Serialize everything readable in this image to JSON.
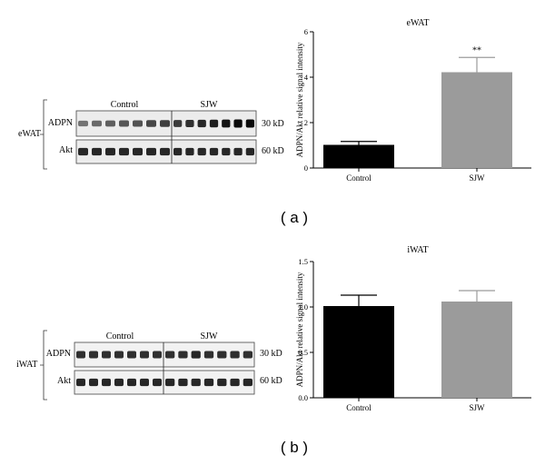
{
  "panels": [
    {
      "label": "( a )",
      "tissue": "eWAT",
      "blot": {
        "group_labels": [
          "Control",
          "SJW"
        ],
        "rows": [
          {
            "name": "ADPN",
            "size": "30 kD",
            "intensities_control": [
              0.45,
              0.5,
              0.55,
              0.6,
              0.62,
              0.68,
              0.72
            ],
            "intensities_sjw": [
              0.75,
              0.8,
              0.85,
              0.9,
              0.95,
              1.0,
              1.0
            ]
          },
          {
            "name": "Akt",
            "size": "60 kD",
            "intensities_control": [
              0.85,
              0.85,
              0.85,
              0.85,
              0.85,
              0.85,
              0.85
            ],
            "intensities_sjw": [
              0.85,
              0.85,
              0.85,
              0.85,
              0.85,
              0.85,
              0.85
            ]
          }
        ]
      }
    },
    {
      "label": "( b )",
      "tissue": "iWAT",
      "blot": {
        "group_labels": [
          "Control",
          "SJW"
        ],
        "rows": [
          {
            "name": "ADPN",
            "size": "30 kD",
            "intensities_control": [
              0.8,
              0.8,
              0.8,
              0.8,
              0.8,
              0.8,
              0.8
            ],
            "intensities_sjw": [
              0.8,
              0.8,
              0.85,
              0.8,
              0.8,
              0.8,
              0.8
            ]
          },
          {
            "name": "Akt",
            "size": "60 kD",
            "intensities_control": [
              0.85,
              0.85,
              0.85,
              0.85,
              0.85,
              0.85,
              0.85
            ],
            "intensities_sjw": [
              0.85,
              0.85,
              0.85,
              0.85,
              0.85,
              0.85,
              0.85
            ]
          }
        ]
      }
    }
  ],
  "chart_data": [
    {
      "type": "bar",
      "title": "eWAT",
      "ylabel": "ADPN/Akt relative signal intensity",
      "xlabel": "",
      "categories": [
        "Control",
        "SJW"
      ],
      "values": [
        1.02,
        4.22
      ],
      "errors": [
        0.15,
        0.65
      ],
      "colors": [
        "#000000",
        "#9b9b9b"
      ],
      "ylim": [
        0,
        6
      ],
      "yticks": [
        "0",
        "2",
        "4",
        "6"
      ],
      "annotations": [
        {
          "category": "SJW",
          "text": "**"
        }
      ]
    },
    {
      "type": "bar",
      "title": "iWAT",
      "ylabel": "ADPN/Akt relative signal intensity",
      "xlabel": "",
      "categories": [
        "Control",
        "SJW"
      ],
      "values": [
        1.01,
        1.06
      ],
      "errors": [
        0.12,
        0.12
      ],
      "colors": [
        "#000000",
        "#9b9b9b"
      ],
      "ylim": [
        0,
        1.5
      ],
      "yticks": [
        "0.0",
        "0.5",
        "1.0",
        "1.5"
      ],
      "annotations": []
    }
  ]
}
